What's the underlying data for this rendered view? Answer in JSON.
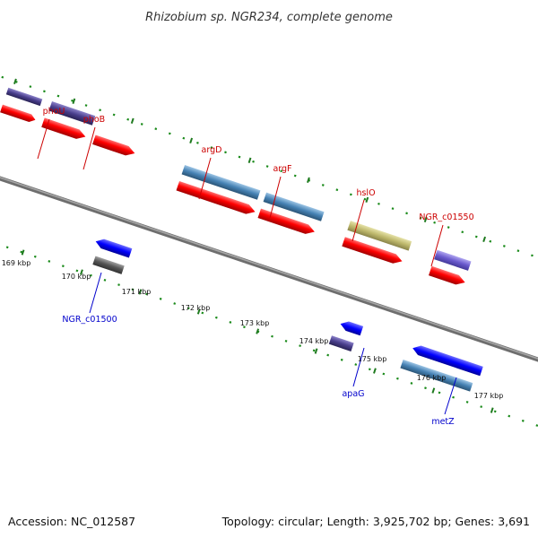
{
  "title": "Rhizobium sp. NGR234, complete genome",
  "footer": {
    "accession": "Accession: NC_012587",
    "summary": "Topology: circular; Length: 3,925,702 bp; Genes: 3,691"
  },
  "colors": {
    "background": "#ffffff",
    "backbone": "#808080",
    "tick_major": "#1f7a1f",
    "tick_minor": "#1a8a1a",
    "label_top": "#cc0000",
    "label_bottom": "#0000cc",
    "cds_red": "#ff0000",
    "gene_steel": "#4682b4",
    "gene_purple": "#483d8b",
    "gene_slate": "#6a5acd",
    "gene_blue": "#0000ff",
    "gene_khaki": "#bdb76b",
    "gene_gray": "#555555",
    "gene_cyan": "#00bfff"
  },
  "kbp_labels": [
    "169 kbp",
    "170 kbp",
    "171 kbp",
    "172 kbp",
    "173 kbp",
    "174 kbp",
    "175 kbp",
    "176 kbp",
    "177 kbp"
  ],
  "genes_top": [
    {
      "label": "phoU",
      "color": "gene_purple"
    },
    {
      "label": "phoB",
      "color": "cds_red"
    },
    {
      "label": "argD",
      "color": "gene_steel"
    },
    {
      "label": "argF",
      "color": "gene_steel"
    },
    {
      "label": "hslO",
      "color": "gene_khaki"
    },
    {
      "label": "NGR_c01550",
      "color": "gene_slate"
    }
  ],
  "genes_bottom": [
    {
      "label": "NGR_c01500",
      "color": "gene_gray"
    },
    {
      "label": "apaG",
      "color": "gene_purple"
    },
    {
      "label": "metZ",
      "color": "gene_steel"
    }
  ]
}
